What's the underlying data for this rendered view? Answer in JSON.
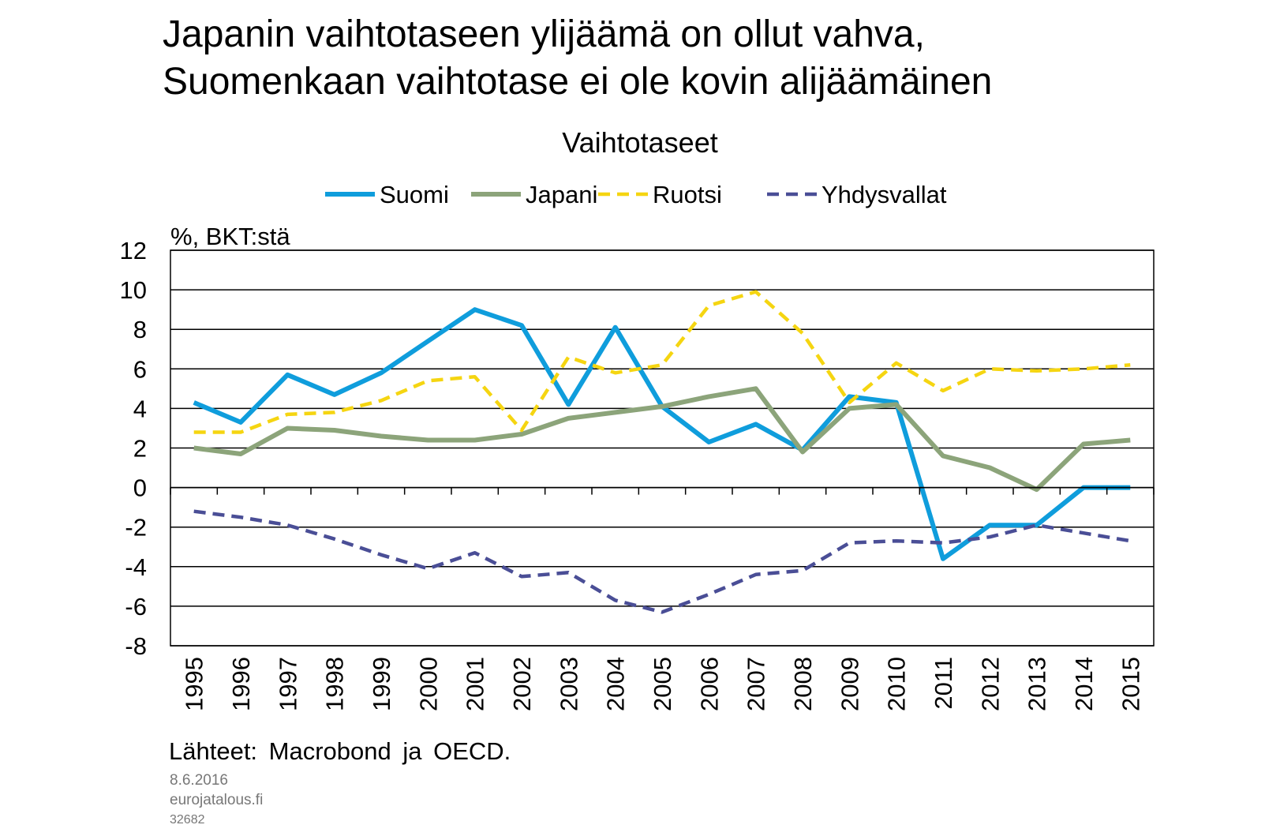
{
  "headline": {
    "line1": "Japanin vaihtotaseen ylijäämä on ollut vahva,",
    "line2": "Suomenkaan vaihtotase ei ole kovin alijäämäinen"
  },
  "footer": {
    "source": "Lähteet:  Macrobond  ja OECD.",
    "date": "8.6.2016",
    "site": "eurojatalous.fi",
    "code": "32682"
  },
  "chart_data": {
    "type": "line",
    "title": "Vaihtotaseet",
    "ylabel": "%, BKT:stä",
    "xlabel": "",
    "ylim": [
      -8,
      12
    ],
    "yticks": [
      12,
      10,
      8,
      6,
      4,
      2,
      0,
      -2,
      -4,
      -6,
      -8
    ],
    "grid": true,
    "legend_position": "top",
    "categories": [
      "1995",
      "1996",
      "1997",
      "1998",
      "1999",
      "2000",
      "2001",
      "2002",
      "2003",
      "2004",
      "2005",
      "2006",
      "2007",
      "2008",
      "2009",
      "2010",
      "2011",
      "2012",
      "2013",
      "2014",
      "2015"
    ],
    "series": [
      {
        "name": "Suomi",
        "color": "#0f9ddc",
        "style": "solid",
        "values": [
          4.3,
          3.3,
          5.7,
          4.7,
          5.8,
          7.4,
          9.0,
          8.2,
          4.2,
          8.1,
          4.1,
          2.3,
          3.2,
          1.9,
          4.6,
          4.3,
          -3.6,
          -1.9,
          -1.9,
          0.0,
          0.0
        ]
      },
      {
        "name": "Japani",
        "color": "#8ca47a",
        "style": "solid",
        "values": [
          2.0,
          1.7,
          3.0,
          2.9,
          2.6,
          2.4,
          2.4,
          2.7,
          3.5,
          3.8,
          4.1,
          4.6,
          5.0,
          1.8,
          4.0,
          4.2,
          1.6,
          1.0,
          -0.1,
          2.2,
          2.4
        ]
      },
      {
        "name": "Ruotsi",
        "color": "#f5d511",
        "style": "dashed",
        "values": [
          2.8,
          2.8,
          3.7,
          3.8,
          4.4,
          5.4,
          5.6,
          2.9,
          6.6,
          5.8,
          6.2,
          9.2,
          9.9,
          7.8,
          4.3,
          6.3,
          4.9,
          6.0,
          5.9,
          6.0,
          6.2
        ]
      },
      {
        "name": "Yhdysvallat",
        "color": "#4a4e96",
        "style": "dashed",
        "values": [
          -1.2,
          -1.5,
          -1.9,
          -2.6,
          -3.4,
          -4.1,
          -3.3,
          -4.5,
          -4.3,
          -5.7,
          -6.3,
          -5.4,
          -4.4,
          -4.2,
          -2.8,
          -2.7,
          -2.8,
          -2.5,
          -1.9,
          -2.3,
          -2.7
        ]
      }
    ]
  }
}
